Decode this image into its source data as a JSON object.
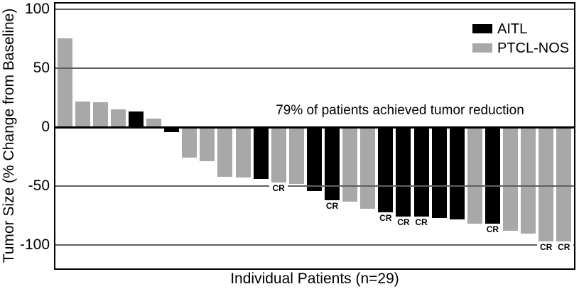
{
  "chart_data": {
    "type": "bar",
    "title": "",
    "xlabel": "Individual Patients (n=29)",
    "ylabel": "Tumor Size (% Change from Baseline)",
    "annotation": "79% of patients achieved tumor reduction",
    "ylim": [
      -121,
      106
    ],
    "yticks": [
      100,
      50,
      0,
      -50,
      -100
    ],
    "grid": "horizontal-gridlines-at-yticks",
    "legend_position": "top-right-inside",
    "cr_label_text": "CR",
    "legend": [
      {
        "label": "AITL",
        "color": "#000000"
      },
      {
        "label": "PTCL-NOS",
        "color": "#a8a8a8"
      }
    ],
    "series_colors": {
      "AITL": "#000000",
      "PTCL-NOS": "#a8a8a8"
    },
    "patients": [
      {
        "index": 1,
        "group": "PTCL-NOS",
        "value": 75,
        "cr": false
      },
      {
        "index": 2,
        "group": "PTCL-NOS",
        "value": 22,
        "cr": false
      },
      {
        "index": 3,
        "group": "PTCL-NOS",
        "value": 21,
        "cr": false
      },
      {
        "index": 4,
        "group": "PTCL-NOS",
        "value": 15,
        "cr": false
      },
      {
        "index": 5,
        "group": "AITL",
        "value": 13,
        "cr": false
      },
      {
        "index": 6,
        "group": "PTCL-NOS",
        "value": 7,
        "cr": false
      },
      {
        "index": 7,
        "group": "AITL",
        "value": -4,
        "cr": false
      },
      {
        "index": 8,
        "group": "PTCL-NOS",
        "value": -26,
        "cr": false
      },
      {
        "index": 9,
        "group": "PTCL-NOS",
        "value": -29,
        "cr": false
      },
      {
        "index": 10,
        "group": "PTCL-NOS",
        "value": -42,
        "cr": false
      },
      {
        "index": 11,
        "group": "PTCL-NOS",
        "value": -43,
        "cr": false
      },
      {
        "index": 12,
        "group": "AITL",
        "value": -44,
        "cr": false
      },
      {
        "index": 13,
        "group": "PTCL-NOS",
        "value": -47,
        "cr": true
      },
      {
        "index": 14,
        "group": "PTCL-NOS",
        "value": -48,
        "cr": false
      },
      {
        "index": 15,
        "group": "AITL",
        "value": -54,
        "cr": false
      },
      {
        "index": 16,
        "group": "AITL",
        "value": -62,
        "cr": true
      },
      {
        "index": 17,
        "group": "PTCL-NOS",
        "value": -63,
        "cr": false
      },
      {
        "index": 18,
        "group": "PTCL-NOS",
        "value": -69,
        "cr": false
      },
      {
        "index": 19,
        "group": "AITL",
        "value": -72,
        "cr": true
      },
      {
        "index": 20,
        "group": "AITL",
        "value": -76,
        "cr": true
      },
      {
        "index": 21,
        "group": "AITL",
        "value": -76,
        "cr": true
      },
      {
        "index": 22,
        "group": "AITL",
        "value": -77,
        "cr": false
      },
      {
        "index": 23,
        "group": "AITL",
        "value": -78,
        "cr": false
      },
      {
        "index": 24,
        "group": "PTCL-NOS",
        "value": -82,
        "cr": false
      },
      {
        "index": 25,
        "group": "AITL",
        "value": -82,
        "cr": true
      },
      {
        "index": 26,
        "group": "PTCL-NOS",
        "value": -88,
        "cr": false
      },
      {
        "index": 27,
        "group": "PTCL-NOS",
        "value": -90,
        "cr": false
      },
      {
        "index": 28,
        "group": "PTCL-NOS",
        "value": -97,
        "cr": true
      },
      {
        "index": 29,
        "group": "PTCL-NOS",
        "value": -97,
        "cr": true
      }
    ]
  }
}
